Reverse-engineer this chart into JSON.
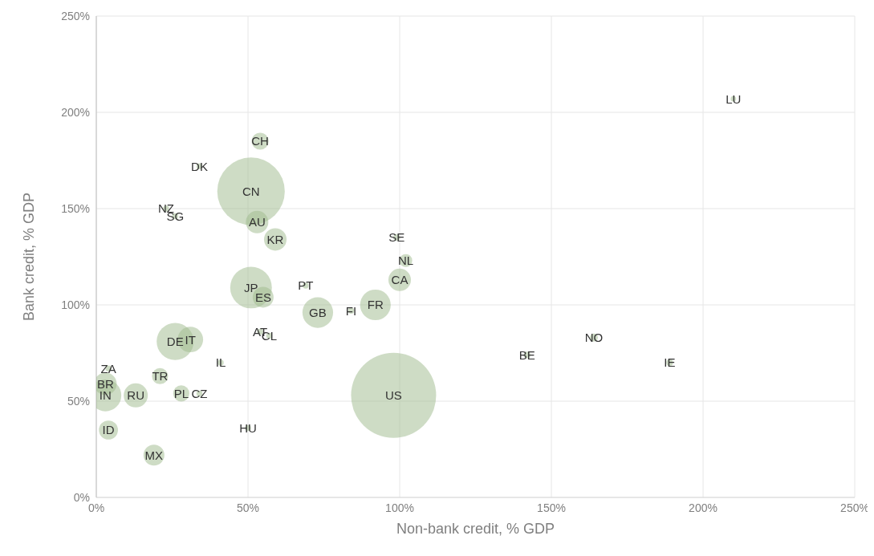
{
  "chart_data": {
    "type": "bubble",
    "xlabel": "Non-bank credit, % GDP",
    "ylabel": "Bank credit, % GDP",
    "xlim": [
      0,
      250
    ],
    "ylim": [
      0,
      250
    ],
    "xticks": [
      {
        "value": 0,
        "label": "0%"
      },
      {
        "value": 50,
        "label": "50%"
      },
      {
        "value": 100,
        "label": "100%"
      },
      {
        "value": 150,
        "label": "150%"
      },
      {
        "value": 200,
        "label": "200%"
      },
      {
        "value": 250,
        "label": "250%"
      }
    ],
    "yticks": [
      {
        "value": 0,
        "label": "0%"
      },
      {
        "value": 50,
        "label": "50%"
      },
      {
        "value": 100,
        "label": "100%"
      },
      {
        "value": 150,
        "label": "150%"
      },
      {
        "value": 200,
        "label": "200%"
      },
      {
        "value": 250,
        "label": "250%"
      }
    ],
    "grid": true,
    "legend": false,
    "marker": "circle",
    "series": [
      {
        "name": "CH",
        "color": "#9dba8b",
        "x": [
          54
        ],
        "values": [
          185
        ],
        "sizes": [
          0.04
        ]
      },
      {
        "name": "DK",
        "color": "#9dba8b",
        "x": [
          34
        ],
        "values": [
          172
        ],
        "sizes": [
          0.005
        ]
      },
      {
        "name": "CN",
        "color": "#9dba8b",
        "x": [
          51
        ],
        "values": [
          159
        ],
        "sizes": [
          0.63
        ]
      },
      {
        "name": "NZ",
        "color": "#9dba8b",
        "x": [
          23
        ],
        "values": [
          150
        ],
        "sizes": [
          0.005
        ]
      },
      {
        "name": "SG",
        "color": "#9dba8b",
        "x": [
          26
        ],
        "values": [
          146
        ],
        "sizes": [
          0.005
        ]
      },
      {
        "name": "AU",
        "color": "#9dba8b",
        "x": [
          53
        ],
        "values": [
          143
        ],
        "sizes": [
          0.07
        ]
      },
      {
        "name": "KR",
        "color": "#9dba8b",
        "x": [
          59
        ],
        "values": [
          134
        ],
        "sizes": [
          0.07
        ]
      },
      {
        "name": "SE",
        "color": "#9dba8b",
        "x": [
          99
        ],
        "values": [
          135
        ],
        "sizes": [
          0.006
        ]
      },
      {
        "name": "NL",
        "color": "#9dba8b",
        "x": [
          102
        ],
        "values": [
          123
        ],
        "sizes": [
          0.023
        ]
      },
      {
        "name": "CA",
        "color": "#9dba8b",
        "x": [
          100
        ],
        "values": [
          113
        ],
        "sizes": [
          0.07
        ]
      },
      {
        "name": "JP",
        "color": "#9dba8b",
        "x": [
          51
        ],
        "values": [
          109
        ],
        "sizes": [
          0.24
        ]
      },
      {
        "name": "ES",
        "color": "#9dba8b",
        "x": [
          55
        ],
        "values": [
          104
        ],
        "sizes": [
          0.06
        ]
      },
      {
        "name": "PT",
        "color": "#9dba8b",
        "x": [
          69
        ],
        "values": [
          110
        ],
        "sizes": [
          0.005
        ]
      },
      {
        "name": "GB",
        "color": "#9dba8b",
        "x": [
          73
        ],
        "values": [
          96
        ],
        "sizes": [
          0.13
        ]
      },
      {
        "name": "FI",
        "color": "#9dba8b",
        "x": [
          84
        ],
        "values": [
          97
        ],
        "sizes": [
          0.005
        ]
      },
      {
        "name": "FR",
        "color": "#9dba8b",
        "x": [
          92
        ],
        "values": [
          100
        ],
        "sizes": [
          0.13
        ]
      },
      {
        "name": "DE",
        "color": "#9dba8b",
        "x": [
          26
        ],
        "values": [
          81
        ],
        "sizes": [
          0.19
        ]
      },
      {
        "name": "IT",
        "color": "#9dba8b",
        "x": [
          31
        ],
        "values": [
          82
        ],
        "sizes": [
          0.09
        ]
      },
      {
        "name": "AT",
        "color": "#9dba8b",
        "x": [
          54
        ],
        "values": [
          86
        ],
        "sizes": [
          0.005
        ]
      },
      {
        "name": "CL",
        "color": "#9dba8b",
        "x": [
          57
        ],
        "values": [
          84
        ],
        "sizes": [
          0.005
        ]
      },
      {
        "name": "IL",
        "color": "#9dba8b",
        "x": [
          41
        ],
        "values": [
          70
        ],
        "sizes": [
          0.005
        ]
      },
      {
        "name": "ZA",
        "color": "#9dba8b",
        "x": [
          4
        ],
        "values": [
          67
        ],
        "sizes": [
          0.005
        ]
      },
      {
        "name": "BR",
        "color": "#9dba8b",
        "x": [
          3
        ],
        "values": [
          59
        ],
        "sizes": [
          0.07
        ]
      },
      {
        "name": "IN",
        "color": "#9dba8b",
        "x": [
          3
        ],
        "values": [
          53
        ],
        "sizes": [
          0.14
        ]
      },
      {
        "name": "RU",
        "color": "#9dba8b",
        "x": [
          13
        ],
        "values": [
          53
        ],
        "sizes": [
          0.08
        ]
      },
      {
        "name": "TR",
        "color": "#9dba8b",
        "x": [
          21
        ],
        "values": [
          63
        ],
        "sizes": [
          0.036
        ]
      },
      {
        "name": "PL",
        "color": "#9dba8b",
        "x": [
          28
        ],
        "values": [
          54
        ],
        "sizes": [
          0.036
        ]
      },
      {
        "name": "CZ",
        "color": "#9dba8b",
        "x": [
          34
        ],
        "values": [
          54
        ],
        "sizes": [
          0.005
        ]
      },
      {
        "name": "HU",
        "color": "#9dba8b",
        "x": [
          50
        ],
        "values": [
          36
        ],
        "sizes": [
          0.005
        ]
      },
      {
        "name": "ID",
        "color": "#9dba8b",
        "x": [
          4
        ],
        "values": [
          35
        ],
        "sizes": [
          0.05
        ]
      },
      {
        "name": "MX",
        "color": "#9dba8b",
        "x": [
          19
        ],
        "values": [
          22
        ],
        "sizes": [
          0.06
        ]
      },
      {
        "name": "US",
        "color": "#9dba8b",
        "x": [
          98
        ],
        "values": [
          53
        ],
        "sizes": [
          1
        ]
      },
      {
        "name": "BE",
        "color": "#9dba8b",
        "x": [
          142
        ],
        "values": [
          74
        ],
        "sizes": [
          0.006
        ]
      },
      {
        "name": "NO",
        "color": "#9dba8b",
        "x": [
          164
        ],
        "values": [
          83
        ],
        "sizes": [
          0.009
        ]
      },
      {
        "name": "IE",
        "color": "#9dba8b",
        "x": [
          189
        ],
        "values": [
          70
        ],
        "sizes": [
          0.006
        ]
      },
      {
        "name": "LU",
        "color": "#9dba8b",
        "x": [
          210
        ],
        "values": [
          207
        ],
        "sizes": [
          0.004
        ]
      }
    ]
  }
}
